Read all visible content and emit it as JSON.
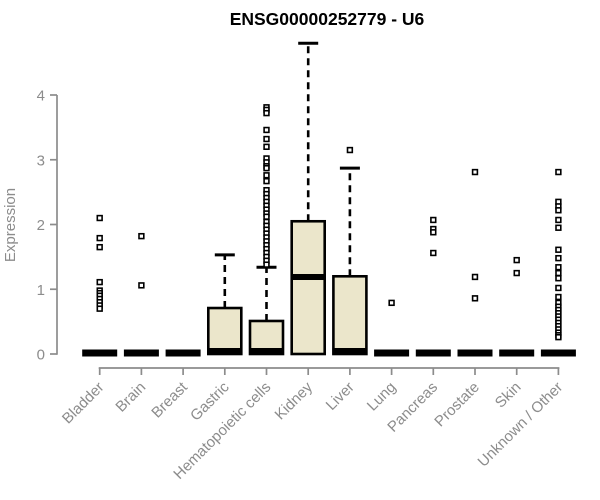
{
  "chart_data": {
    "type": "boxplot",
    "title": "ENSG00000252779 - U6",
    "xlabel": "",
    "ylabel": "Expression",
    "yticks": [
      0,
      1,
      2,
      3,
      4
    ],
    "ylim": [
      0,
      4.85
    ],
    "grid": "off",
    "legend": "none",
    "categories": [
      "Bladder",
      "Brain",
      "Breast",
      "Gastric",
      "Hematopoietic cells",
      "Kidney",
      "Liver",
      "Lung",
      "Pancreas",
      "Prostate",
      "Skin",
      "Unknown / Other"
    ],
    "boxes": [
      {
        "category": "Bladder",
        "q1": 0,
        "median": 0,
        "q3": 0,
        "whisker_low": 0,
        "whisker_high": 0,
        "outliers": [
          2.1,
          1.79,
          1.65,
          1.11,
          0.98,
          0.94,
          0.9,
          0.85,
          0.8,
          0.75,
          0.7
        ]
      },
      {
        "category": "Brain",
        "q1": 0,
        "median": 0,
        "q3": 0,
        "whisker_low": 0,
        "whisker_high": 0,
        "outliers": [
          1.82,
          1.06
        ]
      },
      {
        "category": "Breast",
        "q1": 0,
        "median": 0,
        "q3": 0,
        "whisker_low": 0,
        "whisker_high": 0,
        "outliers": []
      },
      {
        "category": "Gastric",
        "q1": 0,
        "median": 0,
        "q3": 0.71,
        "whisker_low": 0,
        "whisker_high": 1.53,
        "outliers": []
      },
      {
        "category": "Hematopoietic cells",
        "q1": 0,
        "median": 0,
        "q3": 0.51,
        "whisker_low": 0,
        "whisker_high": 1.34,
        "outliers": [
          3.81,
          3.77,
          3.72,
          3.46,
          3.32,
          3.2,
          3.02,
          2.96,
          2.9,
          2.87,
          2.76,
          2.67,
          2.53,
          2.47,
          2.41,
          2.35,
          2.29,
          2.23,
          2.17,
          2.12,
          2.04,
          1.98,
          1.92,
          1.86,
          1.8,
          1.74,
          1.68,
          1.62,
          1.56,
          1.5,
          1.44,
          1.38
        ]
      },
      {
        "category": "Kidney",
        "q1": 0,
        "median": 1.19,
        "q3": 2.05,
        "whisker_low": 0,
        "whisker_high": 4.8,
        "outliers": []
      },
      {
        "category": "Liver",
        "q1": 0,
        "median": 0,
        "q3": 1.2,
        "whisker_low": 0,
        "whisker_high": 2.87,
        "outliers": [
          3.15
        ]
      },
      {
        "category": "Lung",
        "q1": 0,
        "median": 0,
        "q3": 0,
        "whisker_low": 0,
        "whisker_high": 0,
        "outliers": [
          0.79
        ]
      },
      {
        "category": "Pancreas",
        "q1": 0,
        "median": 0,
        "q3": 0,
        "whisker_low": 0,
        "whisker_high": 0,
        "outliers": [
          2.07,
          1.93,
          1.88,
          1.56
        ]
      },
      {
        "category": "Prostate",
        "q1": 0,
        "median": 0,
        "q3": 0,
        "whisker_low": 0,
        "whisker_high": 0,
        "outliers": [
          2.81,
          1.19,
          0.86
        ]
      },
      {
        "category": "Skin",
        "q1": 0,
        "median": 0,
        "q3": 0,
        "whisker_low": 0,
        "whisker_high": 0,
        "outliers": [
          1.45,
          1.25
        ]
      },
      {
        "category": "Unknown / Other",
        "q1": 0,
        "median": 0,
        "q3": 0,
        "whisker_low": 0,
        "whisker_high": 0,
        "outliers": [
          2.81,
          2.35,
          2.28,
          2.22,
          2.07,
          1.95,
          1.61,
          1.48,
          1.34,
          1.25,
          1.17,
          1.02,
          0.88,
          0.79,
          0.73,
          0.68,
          0.63,
          0.58,
          0.53,
          0.48,
          0.43,
          0.38,
          0.33,
          0.29,
          0.26
        ]
      }
    ],
    "colors": {
      "box_fill": "#EBE6CB",
      "box_border": "#000000",
      "median": "#000000",
      "whisker": "#000000",
      "outlier": "#000000",
      "axis": "#8C8C8C",
      "tick_label": "#8C8C8C",
      "title": "#000000"
    }
  }
}
